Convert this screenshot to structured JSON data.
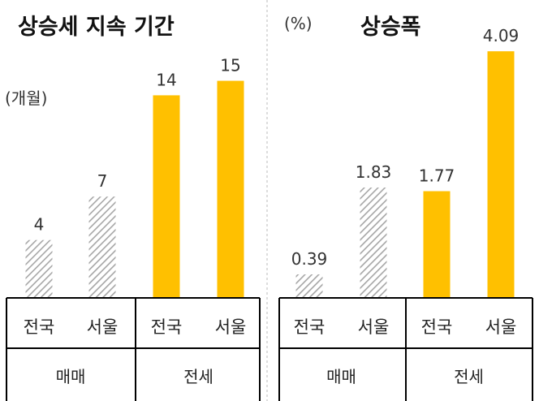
{
  "colors": {
    "jeonse": "#FFC000",
    "maemae_hatch": "#A6A6A6"
  },
  "chart_data": [
    {
      "type": "bar",
      "title": "상승세 지속 기간",
      "ylabel": "(개월)",
      "groups": [
        "매매",
        "전세"
      ],
      "categories": [
        "전국",
        "서울",
        "전국",
        "서울"
      ],
      "values": [
        4,
        7,
        14,
        15
      ],
      "value_labels": [
        "4",
        "7",
        "14",
        "15"
      ],
      "bar_group": [
        "매매",
        "매매",
        "전세",
        "전세"
      ],
      "ylim": [
        0,
        17.5
      ],
      "grid": false
    },
    {
      "type": "bar",
      "title": "상승폭",
      "ylabel": "(%)",
      "groups": [
        "매매",
        "전세"
      ],
      "categories": [
        "전국",
        "서울",
        "전국",
        "서울"
      ],
      "values": [
        0.39,
        1.83,
        1.77,
        4.09
      ],
      "value_labels": [
        "0.39",
        "1.83",
        "1.77",
        "4.09"
      ],
      "bar_group": [
        "매매",
        "매매",
        "전세",
        "전세"
      ],
      "ylim": [
        0,
        4.2
      ],
      "grid": false
    }
  ]
}
